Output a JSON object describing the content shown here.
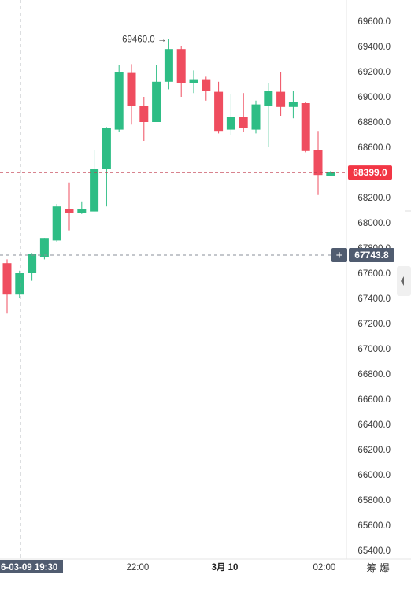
{
  "chart_data": {
    "type": "candlestick",
    "ylim": [
      65400,
      69600
    ],
    "y_ticks": [
      "69600.0",
      "69400.0",
      "69200.0",
      "69000.0",
      "68800.0",
      "68600.0",
      "68400.0",
      "68200.0",
      "68000.0",
      "67800.0",
      "67600.0",
      "67400.0",
      "67200.0",
      "67000.0",
      "66800.0",
      "66600.0",
      "66400.0",
      "66200.0",
      "66000.0",
      "65800.0",
      "65600.0",
      "65400.0"
    ],
    "x_ticks": [
      {
        "label": "22:00",
        "index": 10.5,
        "bold": false
      },
      {
        "label": "3月 10",
        "index": 17.5,
        "bold": true
      },
      {
        "label": "02:00",
        "index": 25.5,
        "bold": false
      }
    ],
    "colors": {
      "up": "#2ebd85",
      "down": "#ef4d5f",
      "accent": "#f23645",
      "crosshair_label": "#505c70"
    },
    "candles": [
      {
        "o": 67680,
        "h": 67710,
        "l": 67280,
        "c": 67430
      },
      {
        "o": 67430,
        "h": 67620,
        "l": 67400,
        "c": 67600
      },
      {
        "o": 67600,
        "h": 67760,
        "l": 67540,
        "c": 67750
      },
      {
        "o": 67730,
        "h": 67880,
        "l": 67710,
        "c": 67880
      },
      {
        "o": 67860,
        "h": 68150,
        "l": 67850,
        "c": 68130
      },
      {
        "o": 68110,
        "h": 68320,
        "l": 67940,
        "c": 68080
      },
      {
        "o": 68080,
        "h": 68170,
        "l": 68070,
        "c": 68110
      },
      {
        "o": 68090,
        "h": 68580,
        "l": 68090,
        "c": 68430
      },
      {
        "o": 68430,
        "h": 68760,
        "l": 68130,
        "c": 68750
      },
      {
        "o": 68740,
        "h": 69250,
        "l": 68720,
        "c": 69200
      },
      {
        "o": 69190,
        "h": 69260,
        "l": 68780,
        "c": 68930
      },
      {
        "o": 68930,
        "h": 69000,
        "l": 68650,
        "c": 68800
      },
      {
        "o": 68800,
        "h": 69250,
        "l": 68800,
        "c": 69120
      },
      {
        "o": 69120,
        "h": 69460,
        "l": 69060,
        "c": 69380
      },
      {
        "o": 69380,
        "h": 69400,
        "l": 69000,
        "c": 69110
      },
      {
        "o": 69110,
        "h": 69210,
        "l": 69030,
        "c": 69140
      },
      {
        "o": 69140,
        "h": 69160,
        "l": 68970,
        "c": 69050
      },
      {
        "o": 69040,
        "h": 69120,
        "l": 68710,
        "c": 68730
      },
      {
        "o": 68740,
        "h": 69020,
        "l": 68700,
        "c": 68840
      },
      {
        "o": 68840,
        "h": 69030,
        "l": 68720,
        "c": 68750
      },
      {
        "o": 68740,
        "h": 68970,
        "l": 68710,
        "c": 68940
      },
      {
        "o": 68930,
        "h": 69110,
        "l": 68600,
        "c": 69050
      },
      {
        "o": 69040,
        "h": 69200,
        "l": 68850,
        "c": 68920
      },
      {
        "o": 68920,
        "h": 69050,
        "l": 68830,
        "c": 68960
      },
      {
        "o": 68950,
        "h": 68960,
        "l": 68560,
        "c": 68570
      },
      {
        "o": 68580,
        "h": 68730,
        "l": 68220,
        "c": 68380
      },
      {
        "o": 68370,
        "h": 68410,
        "l": 68370,
        "c": 68400
      }
    ],
    "max_annotation": {
      "label": "69460.0",
      "arrow": "→",
      "index": 13,
      "value": 69460
    },
    "last_price": {
      "value": 68399,
      "label": "68399.0"
    },
    "crosshair": {
      "value": 67743.8,
      "label": "67743.8",
      "plus": "+",
      "index": 1
    },
    "crosshair_time": "6-03-09 19:30",
    "corner_text": "筹 爆"
  }
}
